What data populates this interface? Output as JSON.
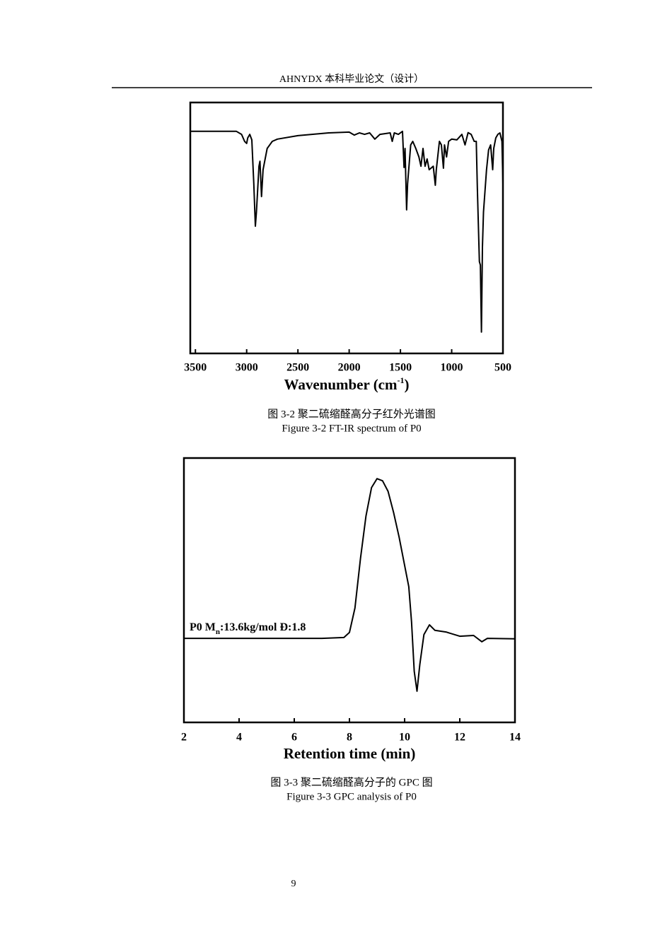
{
  "header": "AHNYDX 本科毕业论文（设计）",
  "chart_data": [
    {
      "type": "line",
      "x_label": [
        "Wavenumber (cm",
        "-1",
        ")"
      ],
      "xlim": [
        3550,
        500
      ],
      "xticks": [
        3500,
        3000,
        2500,
        2000,
        1500,
        1000,
        500
      ],
      "ylim": [
        0,
        100
      ],
      "series": [
        {
          "color": "#000000",
          "x": [
            3550,
            3400,
            3100,
            3050,
            3020,
            3000,
            2990,
            2970,
            2950,
            2930,
            2915,
            2905,
            2880,
            2870,
            2855,
            2840,
            2800,
            2750,
            2700,
            2500,
            2200,
            2000,
            1950,
            1900,
            1850,
            1800,
            1750,
            1700,
            1600,
            1580,
            1560,
            1520,
            1480,
            1465,
            1455,
            1440,
            1430,
            1400,
            1380,
            1350,
            1320,
            1300,
            1280,
            1260,
            1240,
            1220,
            1180,
            1160,
            1150,
            1120,
            1100,
            1080,
            1070,
            1050,
            1030,
            1000,
            950,
            900,
            870,
            840,
            810,
            780,
            760,
            750,
            730,
            720,
            710,
            700,
            690,
            660,
            640,
            620,
            600,
            590,
            570,
            550,
            530,
            510,
            500
          ],
          "values": [
            88.5,
            88.5,
            88.5,
            87.3,
            84.5,
            83.7,
            85.9,
            87.3,
            85.1,
            67.6,
            50.7,
            56.3,
            74.6,
            76.6,
            62.5,
            73.2,
            81.7,
            84.5,
            85.4,
            86.8,
            87.9,
            88.2,
            87.0,
            87.9,
            87.3,
            87.9,
            85.4,
            87.3,
            87.9,
            84.5,
            87.9,
            87.3,
            88.5,
            74.1,
            81.7,
            57.2,
            67.6,
            83.1,
            84.5,
            81.7,
            78.3,
            74.6,
            81.7,
            74.6,
            77.5,
            73.2,
            74.6,
            67.0,
            73.2,
            84.5,
            83.1,
            73.8,
            83.1,
            78.3,
            84.5,
            85.4,
            85.1,
            87.3,
            83.1,
            88.0,
            87.3,
            84.5,
            84.5,
            66.2,
            36.6,
            35.2,
            8.5,
            42.3,
            56.3,
            73.2,
            81.1,
            83.1,
            73.2,
            81.7,
            85.9,
            87.3,
            87.9,
            84.5,
            67.6
          ]
        }
      ]
    },
    {
      "type": "line",
      "x_label": [
        "Retention time (min)"
      ],
      "annotation": [
        "P0 M",
        "n",
        ":13.6kg/mol Đ:1.8"
      ],
      "xlim": [
        2,
        14
      ],
      "xticks": [
        2,
        4,
        6,
        8,
        10,
        12,
        14
      ],
      "ylim": [
        0,
        100
      ],
      "series": [
        {
          "color": "#000000",
          "x": [
            2,
            7,
            7.8,
            8,
            8.2,
            8.4,
            8.6,
            8.8,
            9,
            9.2,
            9.4,
            9.6,
            9.8,
            10,
            10.15,
            10.25,
            10.35,
            10.45,
            10.55,
            10.7,
            10.9,
            11.1,
            11.5,
            12,
            12.5,
            12.8,
            13,
            14
          ],
          "values": [
            31.8,
            31.8,
            32.1,
            34.0,
            43.3,
            62.0,
            78.1,
            88.8,
            92.2,
            91.4,
            87.4,
            79.4,
            70.1,
            59.4,
            51.3,
            38.0,
            19.3,
            11.8,
            21.9,
            33.2,
            36.9,
            34.8,
            34.2,
            32.6,
            32.9,
            30.5,
            31.8,
            31.6
          ]
        }
      ]
    }
  ],
  "captions": [
    [
      "图 3-2  聚二硫缩醛高分子红外光谱图",
      "Figure 3-2  FT-IR  spectrum  of P0"
    ],
    [
      "图 3-3  聚二硫缩醛高分子的 GPC 图",
      "Figure 3-3  GPC  analysis  of P0"
    ]
  ],
  "page_number": "9"
}
